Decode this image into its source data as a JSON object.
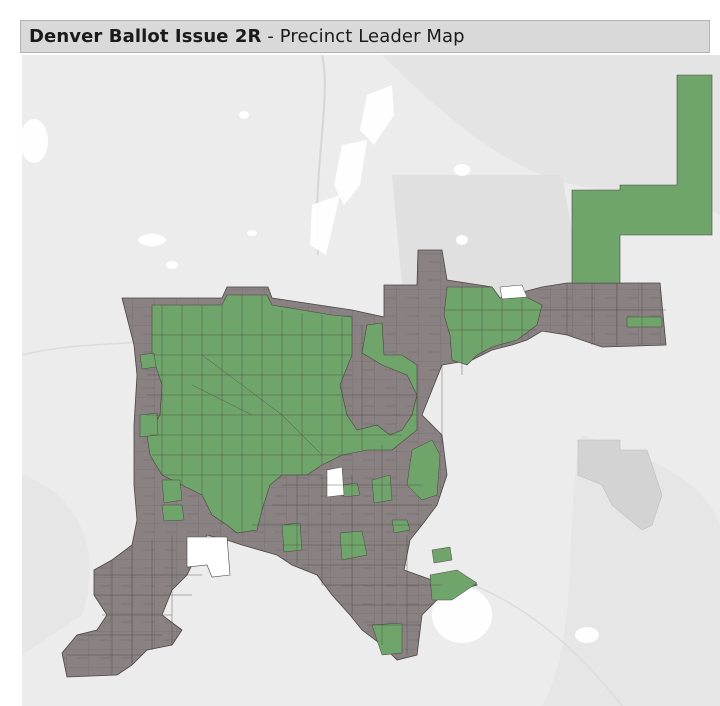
{
  "header": {
    "title_main": "Denver Ballot Issue 2R",
    "title_sep": " - ",
    "title_sub": "Precinct Leader Map"
  },
  "map": {
    "colors": {
      "background": "#ececec",
      "terrain": "#e2e2e2",
      "water": "#ffffff",
      "leader_green": "#6fa56a",
      "leader_gray": "#8a8282",
      "boundary": "#4a4444",
      "neighbor_area": "#d3d3d3"
    }
  }
}
